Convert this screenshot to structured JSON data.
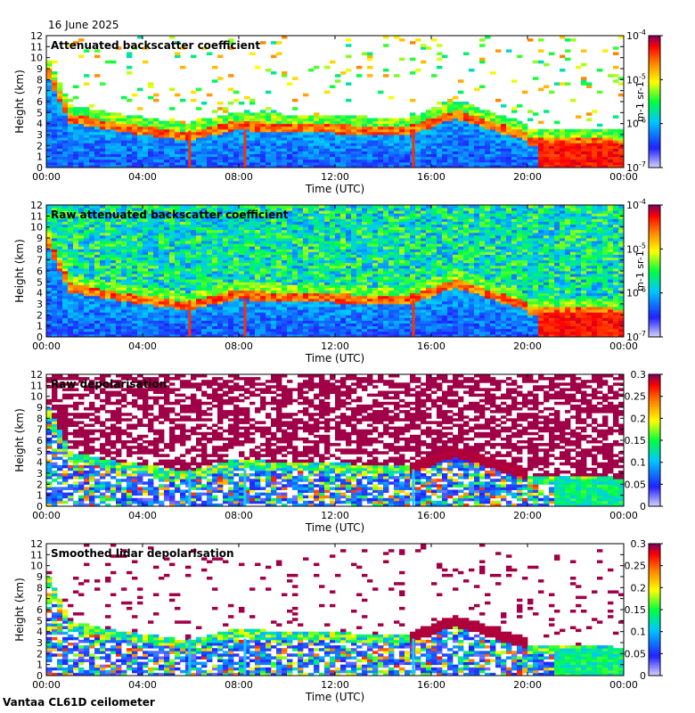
{
  "date": "16 June 2025",
  "footer": "Vantaa CL61D ceilometer",
  "chart_data": [
    {
      "type": "heatmap",
      "title": "Attenuated backscatter coefficient",
      "xlabel": "Time (UTC)",
      "ylabel": "Height (km)",
      "x_ticks": [
        "00:00",
        "04:00",
        "08:00",
        "12:00",
        "16:00",
        "20:00",
        "00:00"
      ],
      "y_ticks": [
        "0",
        "1",
        "2",
        "3",
        "4",
        "5",
        "6",
        "7",
        "8",
        "9",
        "10",
        "11",
        "12"
      ],
      "ylim": [
        0,
        12
      ],
      "colorbar": {
        "scale": "log",
        "min": 1e-07,
        "max": 0.0001,
        "tick_labels": [
          "10-7",
          "10-6",
          "10-5",
          "10-4"
        ],
        "unit": "m-1 sr-1"
      }
    },
    {
      "type": "heatmap",
      "title": "Raw attenuated backscatter coefficient",
      "xlabel": "Time (UTC)",
      "ylabel": "Height (km)",
      "x_ticks": [
        "00:00",
        "04:00",
        "08:00",
        "12:00",
        "16:00",
        "20:00",
        "00:00"
      ],
      "y_ticks": [
        "0",
        "1",
        "2",
        "3",
        "4",
        "5",
        "6",
        "7",
        "8",
        "9",
        "10",
        "11",
        "12"
      ],
      "ylim": [
        0,
        12
      ],
      "colorbar": {
        "scale": "log",
        "min": 1e-07,
        "max": 0.0001,
        "tick_labels": [
          "10-7",
          "10-6",
          "10-5",
          "10-4"
        ],
        "unit": "m-1 sr-1"
      }
    },
    {
      "type": "heatmap",
      "title": "Raw depolarisation",
      "xlabel": "Time (UTC)",
      "ylabel": "Height (km)",
      "x_ticks": [
        "00:00",
        "04:00",
        "08:00",
        "12:00",
        "16:00",
        "20:00",
        "00:00"
      ],
      "y_ticks": [
        "0",
        "1",
        "2",
        "3",
        "4",
        "5",
        "6",
        "7",
        "8",
        "9",
        "10",
        "11",
        "12"
      ],
      "ylim": [
        0,
        12
      ],
      "colorbar": {
        "scale": "linear",
        "min": 0,
        "max": 0.3,
        "tick_labels": [
          "0",
          "0.05",
          "0.1",
          "0.15",
          "0.2",
          "0.25",
          "0.3"
        ]
      }
    },
    {
      "type": "heatmap",
      "title": "Smoothed lidar depolarisation",
      "xlabel": "Time (UTC)",
      "ylabel": "Height (km)",
      "x_ticks": [
        "00:00",
        "04:00",
        "08:00",
        "12:00",
        "16:00",
        "20:00",
        "00:00"
      ],
      "y_ticks": [
        "0",
        "1",
        "2",
        "3",
        "4",
        "5",
        "6",
        "7",
        "8",
        "9",
        "10",
        "11",
        "12"
      ],
      "ylim": [
        0,
        12
      ],
      "colorbar": {
        "scale": "linear",
        "min": 0,
        "max": 0.3,
        "tick_labels": [
          "0",
          "0.05",
          "0.1",
          "0.15",
          "0.2",
          "0.25",
          "0.3"
        ]
      }
    }
  ]
}
